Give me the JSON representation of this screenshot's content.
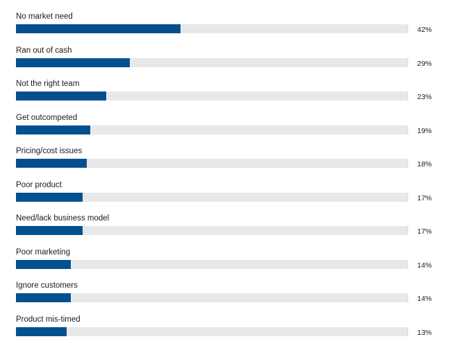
{
  "chart_data": {
    "type": "bar",
    "orientation": "horizontal",
    "categories": [
      "No market need",
      "Ran out of cash",
      "Not the right team",
      "Get outcompeted",
      "Pricing/cost issues",
      "Poor product",
      "Need/lack business model",
      "Poor marketing",
      "Ignore customers",
      "Product mis-timed"
    ],
    "values": [
      42,
      29,
      23,
      19,
      18,
      17,
      17,
      14,
      14,
      13
    ],
    "value_labels": [
      "42%",
      "29%",
      "23%",
      "19%",
      "18%",
      "17%",
      "17%",
      "14%",
      "14%",
      "13%"
    ],
    "xlim": [
      0,
      100
    ],
    "grid": false,
    "legend": "none",
    "colors": {
      "bar": "#03508f",
      "track": "#e8e8e8"
    }
  }
}
